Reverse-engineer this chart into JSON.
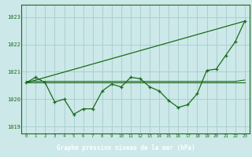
{
  "x": [
    0,
    1,
    2,
    3,
    4,
    5,
    6,
    7,
    8,
    9,
    10,
    11,
    12,
    13,
    14,
    15,
    16,
    17,
    18,
    19,
    20,
    21,
    22,
    23
  ],
  "pressure_main": [
    1020.6,
    1020.8,
    1020.6,
    1019.9,
    1020.0,
    1019.45,
    1019.65,
    1019.65,
    1020.3,
    1020.55,
    1020.45,
    1020.8,
    1020.75,
    1020.45,
    1020.3,
    1019.95,
    1019.7,
    1019.8,
    1020.2,
    1021.05,
    1021.1,
    1021.6,
    1022.1,
    1022.85
  ],
  "flat_line1": [
    1020.65,
    1020.65,
    1020.65,
    1020.65,
    1020.65,
    1020.65,
    1020.65,
    1020.65,
    1020.65,
    1020.65,
    1020.65,
    1020.65,
    1020.65,
    1020.65,
    1020.65,
    1020.65,
    1020.65,
    1020.65,
    1020.65,
    1020.65,
    1020.65,
    1020.65,
    1020.65,
    1020.7
  ],
  "flat_line2": [
    1020.6,
    1020.6,
    1020.6,
    1020.6,
    1020.6,
    1020.6,
    1020.6,
    1020.6,
    1020.6,
    1020.6,
    1020.6,
    1020.6,
    1020.6,
    1020.6,
    1020.6,
    1020.6,
    1020.6,
    1020.6,
    1020.6,
    1020.6,
    1020.6,
    1020.6,
    1020.6,
    1020.6
  ],
  "trend_x": [
    0,
    23
  ],
  "trend_y": [
    1020.6,
    1022.85
  ],
  "bg_color": "#cce8e8",
  "grid_color": "#aad0d0",
  "line_color": "#1a6b1a",
  "xlabel": "Graphe pression niveau de la mer (hPa)",
  "xlabel_bg": "#1a6b1a",
  "xlabel_color": "#ffffff",
  "ylim_min": 1018.75,
  "ylim_max": 1023.45,
  "yticks": [
    1019,
    1020,
    1021,
    1022,
    1023
  ],
  "xlim_min": -0.5,
  "xlim_max": 23.5
}
